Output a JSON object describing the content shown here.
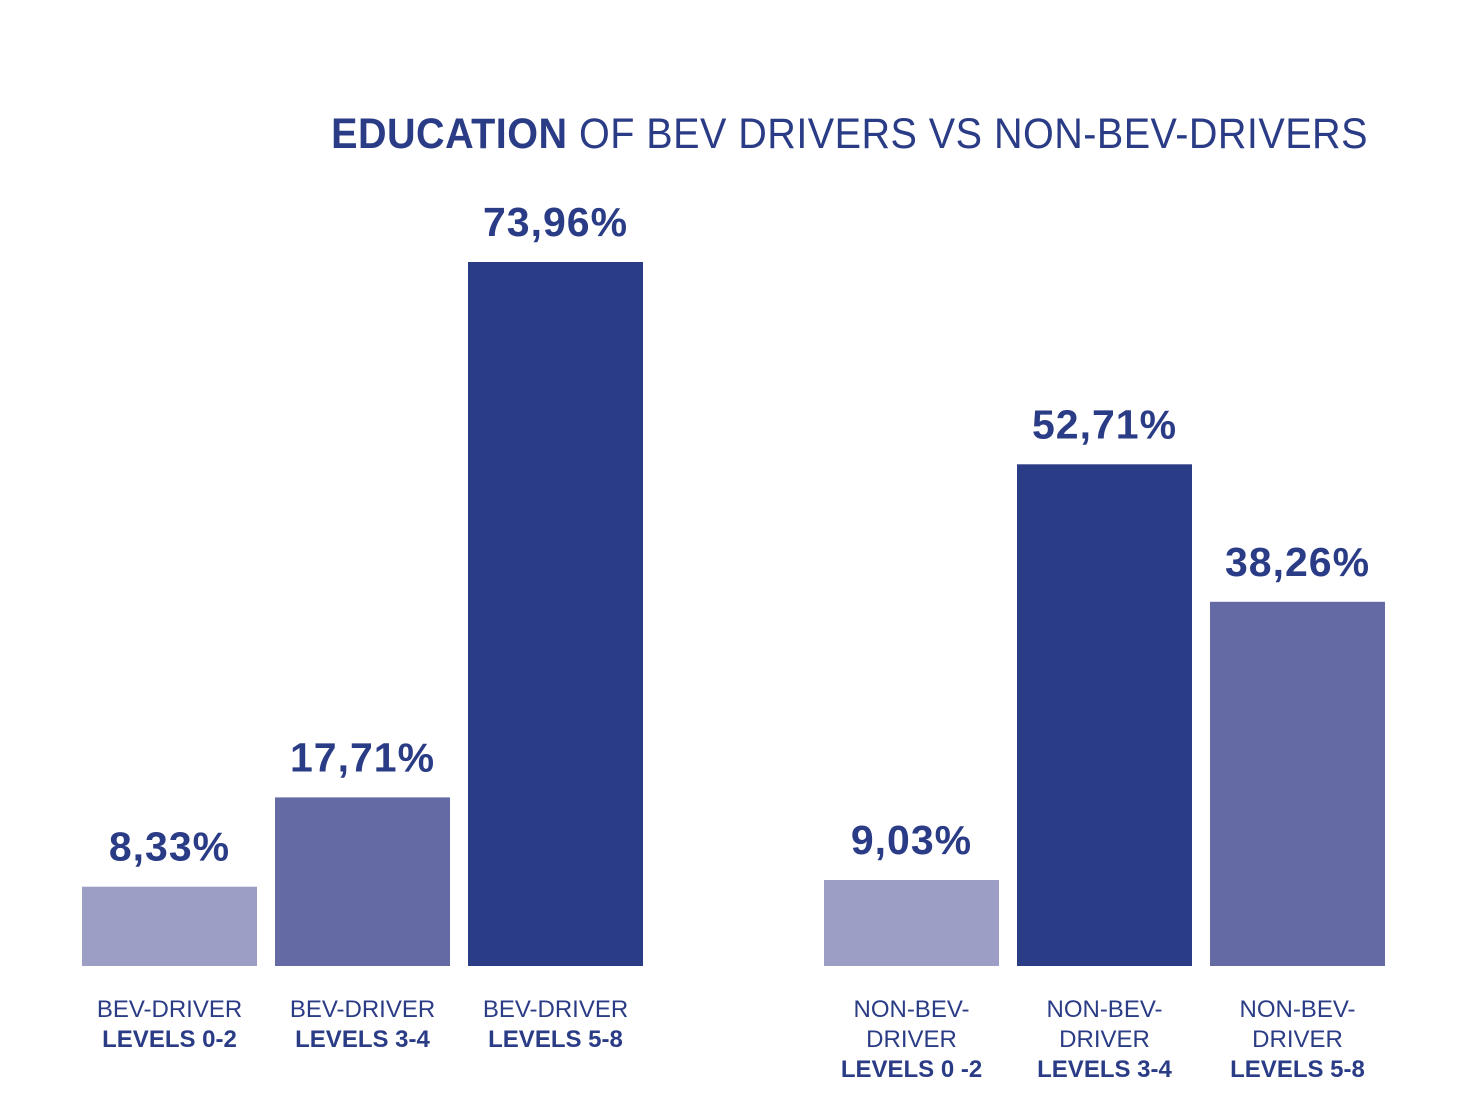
{
  "chart_data": {
    "type": "bar",
    "title_bold": "EDUCATION",
    "title_rest": " OF BEV DRIVERS VS NON-BEV-DRIVERS",
    "ylim": [
      0,
      80
    ],
    "grid": false,
    "colors": {
      "light": "#9d9ec6",
      "medium": "#646aa3",
      "dark": "#2b3c86",
      "text": "#2b3c86"
    },
    "groups": [
      {
        "name": "BEV-DRIVER",
        "bars": [
          {
            "value": 8.33,
            "value_label": "8,33%",
            "label_lines": [
              "BEV-DRIVER"
            ],
            "label_bold": "LEVELS 0-2",
            "shade": "light"
          },
          {
            "value": 17.71,
            "value_label": "17,71%",
            "label_lines": [
              "BEV-DRIVER"
            ],
            "label_bold": "LEVELS 3-4",
            "shade": "medium"
          },
          {
            "value": 73.96,
            "value_label": "73,96%",
            "label_lines": [
              "BEV-DRIVER"
            ],
            "label_bold": "LEVELS 5-8",
            "shade": "dark"
          }
        ]
      },
      {
        "name": "NON-BEV-DRIVER",
        "bars": [
          {
            "value": 9.03,
            "value_label": "9,03%",
            "label_lines": [
              "NON-BEV-",
              "DRIVER"
            ],
            "label_bold": "LEVELS 0 -2",
            "shade": "light"
          },
          {
            "value": 52.71,
            "value_label": "52,71%",
            "label_lines": [
              "NON-BEV-",
              "DRIVER"
            ],
            "label_bold": "LEVELS 3-4",
            "shade": "dark"
          },
          {
            "value": 38.26,
            "value_label": "38,26%",
            "label_lines": [
              "NON-BEV-",
              "DRIVER"
            ],
            "label_bold": "LEVELS 5-8",
            "shade": "medium"
          }
        ]
      }
    ]
  }
}
